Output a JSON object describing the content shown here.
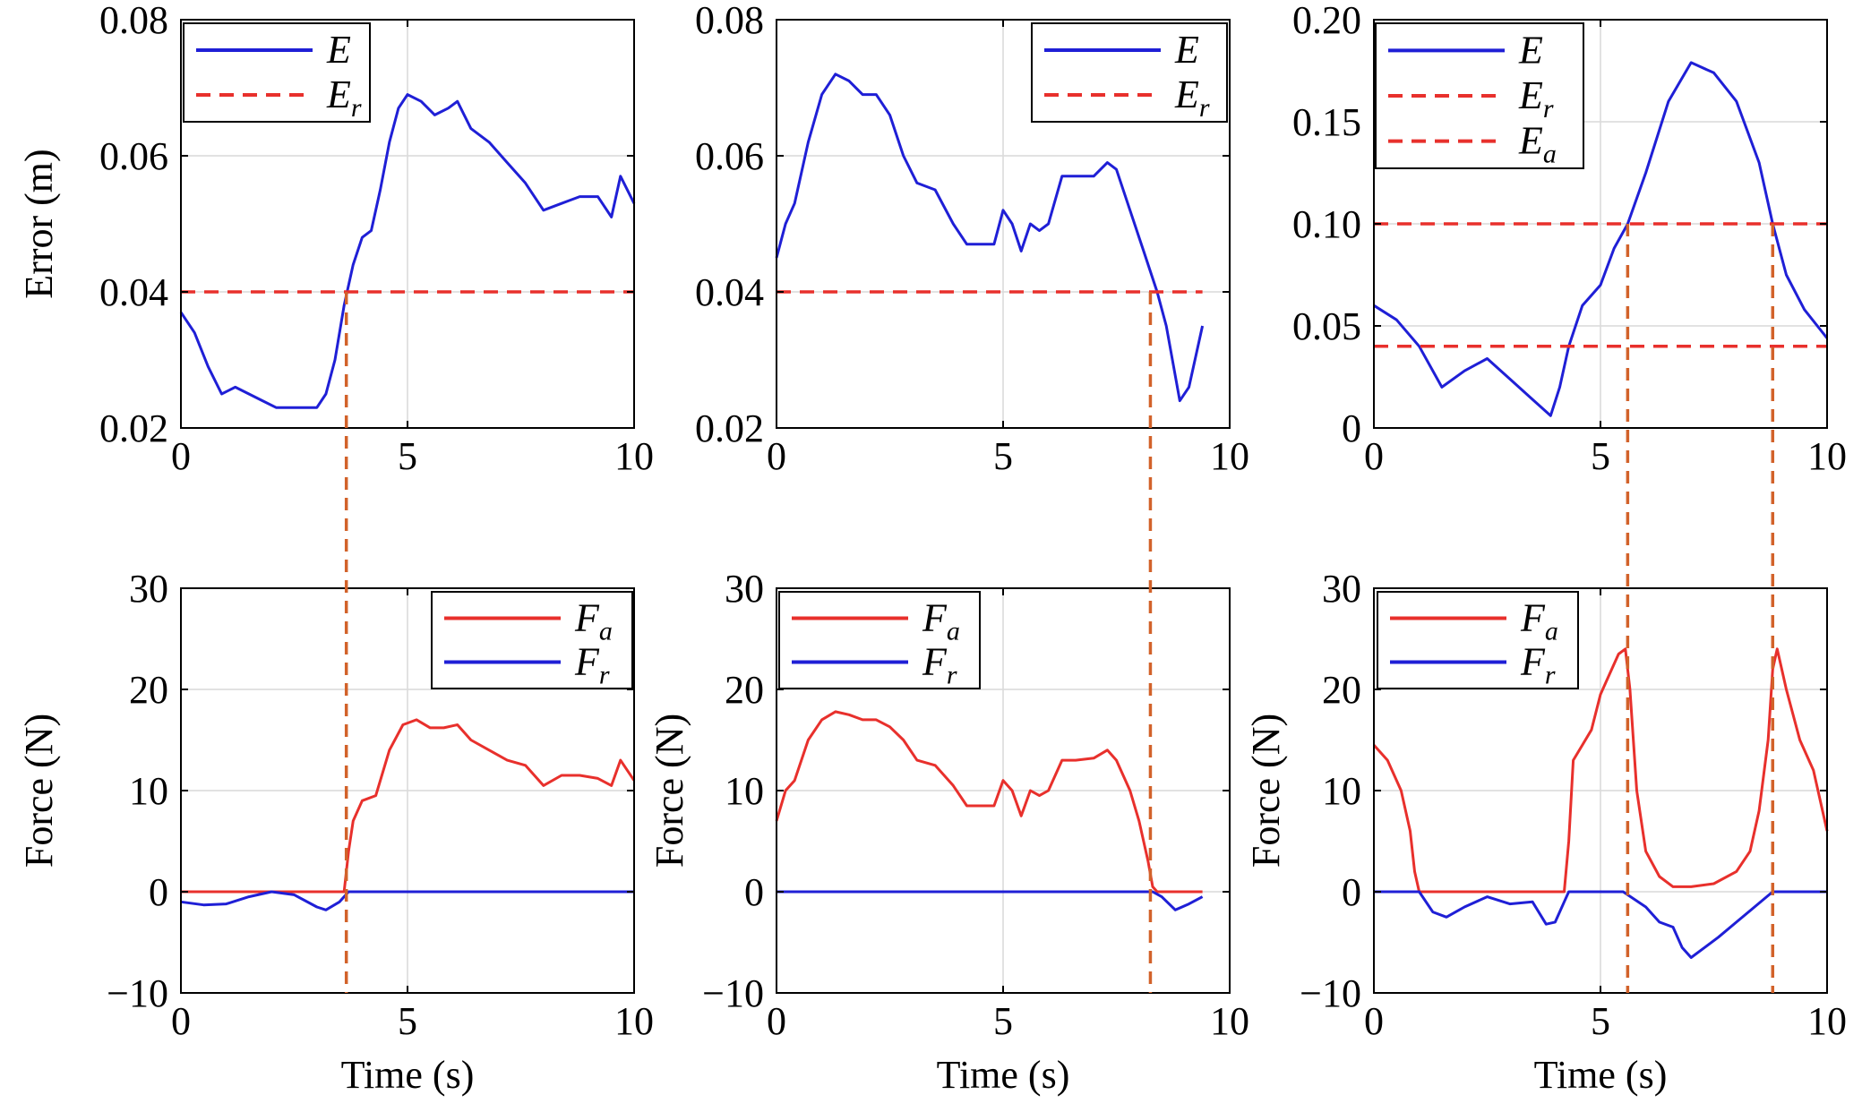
{
  "colors": {
    "E": "#1f1fd6",
    "E_r": "#e8302c",
    "E_a": "#e8302c",
    "F_a": "#e8302c",
    "F_r": "#1f1fd6",
    "connector": "#d2622a"
  },
  "chart_data": [
    {
      "type": "line",
      "panel": "top-left",
      "ylabel": "Error (m)",
      "xlabel": "",
      "xlim": [
        0,
        10
      ],
      "ylim": [
        0.02,
        0.08
      ],
      "xticks": [
        0,
        5,
        10
      ],
      "xtick_labels": [
        "0",
        "5",
        "10"
      ],
      "yticks": [
        0.02,
        0.04,
        0.06,
        0.08
      ],
      "ytick_labels": [
        "0.02",
        "0.04",
        "0.06",
        "0.08"
      ],
      "grid": true,
      "legend_position": "top-left",
      "series": [
        {
          "key": "E",
          "legend_base": "E",
          "legend_sub": "",
          "style": "solid",
          "x": [
            0,
            0.3,
            0.6,
            0.9,
            1.2,
            1.5,
            1.8,
            2.1,
            2.4,
            2.7,
            3.0,
            3.2,
            3.4,
            3.6,
            3.8,
            4.0,
            4.2,
            4.4,
            4.6,
            4.8,
            5.0,
            5.3,
            5.6,
            5.9,
            6.1,
            6.4,
            6.8,
            7.2,
            7.6,
            8.0,
            8.4,
            8.8,
            9.2,
            9.5,
            9.7,
            10.0
          ],
          "y": [
            0.037,
            0.034,
            0.029,
            0.025,
            0.026,
            0.025,
            0.024,
            0.023,
            0.023,
            0.023,
            0.023,
            0.025,
            0.03,
            0.038,
            0.044,
            0.048,
            0.049,
            0.055,
            0.062,
            0.067,
            0.069,
            0.068,
            0.066,
            0.067,
            0.068,
            0.064,
            0.062,
            0.059,
            0.056,
            0.052,
            0.053,
            0.054,
            0.054,
            0.051,
            0.057,
            0.053
          ]
        },
        {
          "key": "E_r",
          "legend_base": "E",
          "legend_sub": "r",
          "style": "dashed",
          "x": [
            0,
            10
          ],
          "y": [
            0.04,
            0.04
          ]
        }
      ]
    },
    {
      "type": "line",
      "panel": "top-middle",
      "ylabel": "",
      "xlabel": "",
      "xlim": [
        0,
        10
      ],
      "ylim": [
        0.02,
        0.08
      ],
      "xticks": [
        0,
        5,
        10
      ],
      "xtick_labels": [
        "0",
        "5",
        "10"
      ],
      "yticks": [
        0.02,
        0.04,
        0.06,
        0.08
      ],
      "ytick_labels": [
        "0.02",
        "0.04",
        "0.06",
        "0.08"
      ],
      "grid": true,
      "legend_position": "top-right",
      "series": [
        {
          "key": "E",
          "legend_base": "E",
          "legend_sub": "",
          "style": "solid",
          "x": [
            0,
            0.2,
            0.4,
            0.7,
            1.0,
            1.3,
            1.6,
            1.9,
            2.2,
            2.5,
            2.8,
            3.1,
            3.5,
            3.9,
            4.2,
            4.5,
            4.8,
            5.0,
            5.2,
            5.4,
            5.6,
            5.8,
            6.0,
            6.3,
            6.6,
            7.0,
            7.3,
            7.5,
            7.8,
            8.1,
            8.4,
            8.6,
            8.9,
            9.1,
            9.4
          ],
          "y": [
            0.045,
            0.05,
            0.053,
            0.062,
            0.069,
            0.072,
            0.071,
            0.069,
            0.069,
            0.066,
            0.06,
            0.056,
            0.055,
            0.05,
            0.047,
            0.047,
            0.047,
            0.052,
            0.05,
            0.046,
            0.05,
            0.049,
            0.05,
            0.057,
            0.057,
            0.057,
            0.059,
            0.058,
            0.052,
            0.046,
            0.04,
            0.035,
            0.024,
            0.026,
            0.035
          ]
        },
        {
          "key": "E_r",
          "legend_base": "E",
          "legend_sub": "r",
          "style": "dashed",
          "x": [
            0,
            9.4
          ],
          "y": [
            0.04,
            0.04
          ]
        }
      ]
    },
    {
      "type": "line",
      "panel": "top-right",
      "ylabel": "",
      "xlabel": "",
      "xlim": [
        0,
        10
      ],
      "ylim": [
        0,
        0.2
      ],
      "xticks": [
        0,
        5,
        10
      ],
      "xtick_labels": [
        "0",
        "5",
        "10"
      ],
      "yticks": [
        0,
        0.05,
        0.1,
        0.15,
        0.2
      ],
      "ytick_labels": [
        "0",
        "0.05",
        "0.10",
        "0.15",
        "0.20"
      ],
      "grid": true,
      "legend_position": "top-left",
      "series": [
        {
          "key": "E",
          "legend_base": "E",
          "legend_sub": "",
          "style": "solid",
          "x": [
            0,
            0.5,
            1.0,
            1.5,
            2.0,
            2.5,
            3.0,
            3.5,
            3.9,
            4.1,
            4.3,
            4.6,
            5.0,
            5.3,
            5.6,
            6.0,
            6.5,
            7.0,
            7.5,
            8.0,
            8.5,
            8.8,
            9.1,
            9.5,
            10.0
          ],
          "y": [
            0.06,
            0.053,
            0.04,
            0.02,
            0.028,
            0.034,
            0.024,
            0.014,
            0.006,
            0.02,
            0.04,
            0.06,
            0.07,
            0.088,
            0.1,
            0.125,
            0.16,
            0.179,
            0.174,
            0.16,
            0.13,
            0.1,
            0.075,
            0.058,
            0.044
          ]
        },
        {
          "key": "E_r",
          "legend_base": "E",
          "legend_sub": "r",
          "style": "dashed",
          "x": [
            0,
            10
          ],
          "y": [
            0.1,
            0.1
          ]
        },
        {
          "key": "E_a",
          "legend_base": "E",
          "legend_sub": "a",
          "style": "dashed",
          "x": [
            0,
            10
          ],
          "y": [
            0.04,
            0.04
          ]
        }
      ]
    },
    {
      "type": "line",
      "panel": "bottom-left",
      "ylabel": "Force (N)",
      "xlabel": "Time (s)",
      "xlim": [
        0,
        10
      ],
      "ylim": [
        -10,
        30
      ],
      "xticks": [
        0,
        5,
        10
      ],
      "xtick_labels": [
        "0",
        "5",
        "10"
      ],
      "yticks": [
        -10,
        0,
        10,
        20,
        30
      ],
      "ytick_labels": [
        "−10",
        "0",
        "10",
        "20",
        "30"
      ],
      "grid": true,
      "legend_position": "top-right",
      "series": [
        {
          "key": "F_a",
          "legend_base": "F",
          "legend_sub": "a",
          "style": "solid",
          "x": [
            0,
            3.6,
            3.7,
            3.8,
            4.0,
            4.3,
            4.6,
            4.9,
            5.2,
            5.5,
            5.8,
            6.1,
            6.4,
            6.8,
            7.2,
            7.6,
            8.0,
            8.4,
            8.8,
            9.2,
            9.5,
            9.7,
            10.0
          ],
          "y": [
            0,
            0,
            4,
            7,
            9,
            9.5,
            14,
            16.5,
            17,
            16.2,
            16.2,
            16.5,
            15,
            14,
            13,
            12.5,
            10.5,
            11.5,
            11.5,
            11.2,
            10.5,
            13,
            11
          ]
        },
        {
          "key": "F_r",
          "legend_base": "F",
          "legend_sub": "r",
          "style": "solid",
          "x": [
            0,
            0.5,
            1.0,
            1.5,
            2.0,
            2.5,
            3.0,
            3.2,
            3.5,
            3.7,
            10.0
          ],
          "y": [
            -1,
            -1.3,
            -1.2,
            -0.5,
            0,
            -0.3,
            -1.5,
            -1.8,
            -1.0,
            0,
            0
          ]
        }
      ]
    },
    {
      "type": "line",
      "panel": "bottom-middle",
      "ylabel": "Force (N)",
      "xlabel": "Time (s)",
      "xlim": [
        0,
        10
      ],
      "ylim": [
        -10,
        30
      ],
      "xticks": [
        0,
        5,
        10
      ],
      "xtick_labels": [
        "0",
        "5",
        "10"
      ],
      "yticks": [
        -10,
        0,
        10,
        20,
        30
      ],
      "ytick_labels": [
        "−10",
        "0",
        "10",
        "20",
        "30"
      ],
      "grid": true,
      "legend_position": "top-left",
      "series": [
        {
          "key": "F_a",
          "legend_base": "F",
          "legend_sub": "a",
          "style": "solid",
          "x": [
            0,
            0.2,
            0.4,
            0.7,
            1.0,
            1.3,
            1.6,
            1.9,
            2.2,
            2.5,
            2.8,
            3.1,
            3.5,
            3.9,
            4.2,
            4.5,
            4.8,
            5.0,
            5.2,
            5.4,
            5.6,
            5.8,
            6.0,
            6.3,
            6.6,
            7.0,
            7.3,
            7.5,
            7.8,
            8.0,
            8.2,
            8.3,
            8.4,
            9.4
          ],
          "y": [
            7,
            10,
            11,
            15,
            17,
            17.8,
            17.5,
            17,
            17,
            16.3,
            15,
            13,
            12.5,
            10.5,
            8.5,
            8.5,
            8.5,
            11,
            10,
            7.5,
            10,
            9.5,
            10,
            13,
            13,
            13.2,
            14,
            13,
            10,
            7,
            3,
            0.5,
            0,
            0
          ]
        },
        {
          "key": "F_r",
          "legend_base": "F",
          "legend_sub": "r",
          "style": "solid",
          "x": [
            0,
            8.3,
            8.5,
            8.8,
            9.1,
            9.4
          ],
          "y": [
            0,
            0,
            -0.5,
            -1.8,
            -1.2,
            -0.5
          ]
        }
      ]
    },
    {
      "type": "line",
      "panel": "bottom-right",
      "ylabel": "Force (N)",
      "xlabel": "Time (s)",
      "xlim": [
        0,
        10
      ],
      "ylim": [
        -10,
        30
      ],
      "xticks": [
        0,
        5,
        10
      ],
      "xtick_labels": [
        "0",
        "5",
        "10"
      ],
      "yticks": [
        -10,
        0,
        10,
        20,
        30
      ],
      "ytick_labels": [
        "−10",
        "0",
        "10",
        "20",
        "30"
      ],
      "grid": true,
      "legend_position": "top-left",
      "series": [
        {
          "key": "F_a",
          "legend_base": "F",
          "legend_sub": "a",
          "style": "solid",
          "x": [
            0,
            0.3,
            0.6,
            0.8,
            0.9,
            1.0,
            4.2,
            4.3,
            4.4,
            4.6,
            4.8,
            5.0,
            5.2,
            5.4,
            5.55,
            5.65,
            5.8,
            6.0,
            6.3,
            6.6,
            7.0,
            7.5,
            8.0,
            8.3,
            8.5,
            8.7,
            8.8,
            8.9,
            9.1,
            9.4,
            9.7,
            10.0
          ],
          "y": [
            14.5,
            13,
            10,
            6,
            2,
            0,
            0,
            5,
            13,
            14.5,
            16,
            19.5,
            21.5,
            23.5,
            24,
            20,
            10,
            4,
            1.5,
            0.5,
            0.5,
            0.8,
            2,
            4,
            8,
            15,
            22,
            24,
            20,
            15,
            12,
            6
          ]
        },
        {
          "key": "F_r",
          "legend_base": "F",
          "legend_sub": "r",
          "style": "solid",
          "x": [
            0,
            1.0,
            1.3,
            1.6,
            2.0,
            2.5,
            3.0,
            3.5,
            3.8,
            4.0,
            4.2,
            4.3,
            5.5,
            6.0,
            6.3,
            6.6,
            6.8,
            7.0,
            7.3,
            7.6,
            8.0,
            8.4,
            8.8,
            10.0
          ],
          "y": [
            0,
            0,
            -2,
            -2.5,
            -1.5,
            -0.5,
            -1.2,
            -1.0,
            -3.2,
            -3.0,
            -1.0,
            0,
            0,
            -1.5,
            -3.0,
            -3.5,
            -5.5,
            -6.5,
            -5.5,
            -4.5,
            -3.0,
            -1.5,
            0,
            0
          ]
        }
      ]
    }
  ],
  "connectors": [
    {
      "x": 3.65,
      "from_panel": 0,
      "to_panel": 3
    },
    {
      "x": 8.25,
      "from_panel": 1,
      "to_panel": 4
    },
    {
      "x": 5.6,
      "from_panel": 2,
      "to_panel": 5
    },
    {
      "x": 8.8,
      "from_panel": 2,
      "to_panel": 5
    }
  ]
}
